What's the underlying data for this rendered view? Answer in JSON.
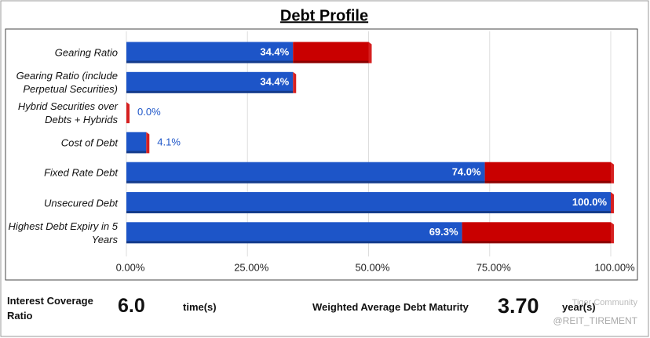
{
  "chart_data": {
    "type": "stacked-bar",
    "title": "Debt Profile",
    "categories": [
      "Gearing Ratio",
      "Gearing Ratio (include Perpetual Securities)",
      "Hybrid Securities over Debts + Hybrids",
      "Cost of Debt",
      "Fixed Rate Debt",
      "Unsecured Debt",
      "Highest Debt Expiry in 5 Years"
    ],
    "series": [
      {
        "color": "#1d55c8",
        "values": [
          34.4,
          34.4,
          0.0,
          4.1,
          74.0,
          100.0,
          69.3
        ],
        "value_labels": [
          "34.4%",
          "34.4%",
          "0.0%",
          "4.1%",
          "74.0%",
          "100.0%",
          "69.3%"
        ]
      },
      {
        "color": "#c90000",
        "values": [
          15.6,
          0,
          0,
          0,
          26.0,
          0,
          30.7
        ]
      }
    ],
    "xlim": [
      0,
      100
    ],
    "xticks": [
      {
        "value": 0,
        "label": "0.00%"
      },
      {
        "value": 25,
        "label": "25.00%"
      },
      {
        "value": 50,
        "label": "50.00%"
      },
      {
        "value": 75,
        "label": "75.00%"
      },
      {
        "value": 100,
        "label": "100.00%"
      }
    ],
    "grid": true
  },
  "footer": {
    "interest_coverage_label": "Interest Coverage Ratio",
    "interest_coverage_value": "6.0",
    "interest_coverage_unit": "time(s)",
    "wadm_label": "Weighted Average Debt Maturity",
    "wadm_value": "3.70",
    "wadm_unit": "year(s)"
  },
  "watermark": {
    "brand": "Tiger Community",
    "handle": "@REIT_TIREMENT"
  }
}
